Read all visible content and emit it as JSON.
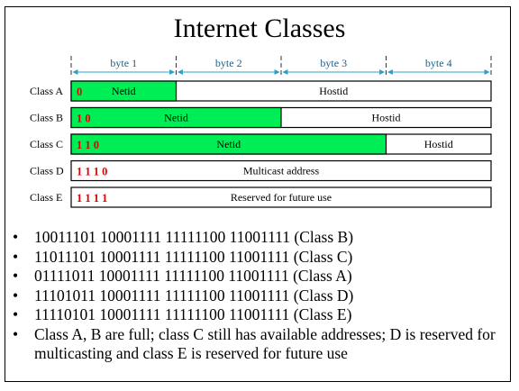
{
  "title": "Internet Classes",
  "bytes": [
    "byte 1",
    "byte 2",
    "byte 3",
    "byte 4"
  ],
  "classes": [
    {
      "label": "Class A",
      "prefix": "0",
      "netid": "Netid",
      "hostid": "Hostid",
      "net_bytes": 1
    },
    {
      "label": "Class B",
      "prefix": "1 0",
      "netid": "Netid",
      "hostid": "Hostid",
      "net_bytes": 2
    },
    {
      "label": "Class C",
      "prefix": "1 1 0",
      "netid": "Netid",
      "hostid": "Hostid",
      "net_bytes": 3
    },
    {
      "label": "Class D",
      "prefix": "1 1 1 0",
      "text": "Multicast address",
      "net_bytes": 0
    },
    {
      "label": "Class E",
      "prefix": "1 1 1 1",
      "text": "Reserved for future use",
      "net_bytes": 0
    }
  ],
  "bullet_symbol": "•",
  "bullets": [
    "10011101 10001111 11111100 11001111 (Class B)",
    "11011101 10001111 11111100 11001111 (Class C)",
    "01111011 10001111 11111100 11001111 (Class A)",
    "11101011 10001111 11111100 11001111 (Class D)",
    "11110101 10001111 11111100 11001111 (Class E)",
    "Class A, B are full; class C still has available addresses; D is reserved for multicasting and class E is reserved for future use"
  ],
  "colors": {
    "netid_fill": "#00ee55",
    "prefix": "#e00000",
    "byte_arrow": "#2aa0c8"
  }
}
